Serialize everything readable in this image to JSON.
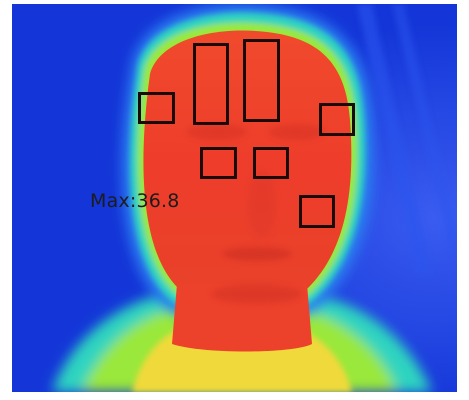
{
  "image": {
    "subject": "thermal-camera-face",
    "palette": {
      "background": "#1436d8",
      "cool": "#2a7ef0",
      "mid": "#2fd4c0",
      "warm": "#9ae83a",
      "hot": "#f4e23a",
      "face": "#ef3b2c"
    }
  },
  "overlay": {
    "max_label": "Max:36.8",
    "regions": [
      {
        "name": "roi-left-brow"
      },
      {
        "name": "roi-forehead-left"
      },
      {
        "name": "roi-forehead-right"
      },
      {
        "name": "roi-right-temple"
      },
      {
        "name": "roi-left-inner-eye"
      },
      {
        "name": "roi-right-inner-eye"
      },
      {
        "name": "roi-right-cheek"
      }
    ]
  }
}
